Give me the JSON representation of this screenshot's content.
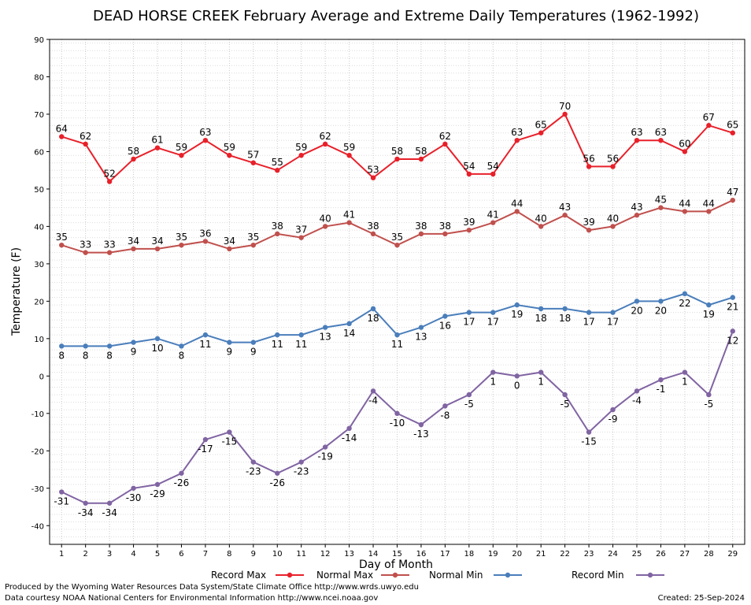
{
  "chart_data": {
    "type": "line",
    "title": "DEAD HORSE CREEK February Average and Extreme Daily Temperatures (1962-1992)",
    "xlabel": "Day of Month",
    "ylabel": "Temperature (F)",
    "ylim": [
      -45,
      90
    ],
    "yticks": [
      -40,
      -30,
      -20,
      -10,
      0,
      10,
      20,
      30,
      40,
      50,
      60,
      70,
      80,
      90
    ],
    "x": [
      1,
      2,
      3,
      4,
      5,
      6,
      7,
      8,
      9,
      10,
      11,
      12,
      13,
      14,
      15,
      16,
      17,
      18,
      19,
      20,
      21,
      22,
      23,
      24,
      25,
      26,
      27,
      28,
      29
    ],
    "grid": true,
    "legend_position": "bottom",
    "series": [
      {
        "name": "Record Max",
        "color": "#e8202a",
        "label_pos": "above",
        "values": [
          64,
          62,
          52,
          58,
          61,
          59,
          63,
          59,
          57,
          55,
          59,
          62,
          59,
          53,
          58,
          58,
          62,
          54,
          54,
          63,
          65,
          70,
          56,
          56,
          63,
          63,
          60,
          67,
          65
        ]
      },
      {
        "name": "Normal Max",
        "color": "#c0504d",
        "label_pos": "above",
        "values": [
          35,
          33,
          33,
          34,
          34,
          35,
          36,
          34,
          35,
          38,
          37,
          40,
          41,
          38,
          35,
          38,
          38,
          39,
          41,
          44,
          40,
          43,
          39,
          40,
          43,
          45,
          44,
          44,
          47
        ]
      },
      {
        "name": "Normal Min",
        "color": "#4a7ebb",
        "label_pos": "below",
        "values": [
          8,
          8,
          8,
          9,
          10,
          8,
          11,
          9,
          9,
          11,
          11,
          13,
          14,
          18,
          11,
          13,
          16,
          17,
          17,
          19,
          18,
          18,
          17,
          17,
          20,
          20,
          22,
          19,
          21
        ]
      },
      {
        "name": "Record Min",
        "color": "#8064a2",
        "label_pos": "below",
        "values": [
          -31,
          -34,
          -34,
          -30,
          -29,
          -26,
          -17,
          -15,
          -23,
          -26,
          -23,
          -19,
          -14,
          -4,
          -10,
          -13,
          -8,
          -5,
          1,
          0,
          1,
          -5,
          -15,
          -9,
          -4,
          -1,
          1,
          -5,
          12
        ]
      }
    ]
  },
  "footer": {
    "credit_line1": "Produced by the Wyoming Water Resources Data System/State Climate Office http://www.wrds.uwyo.edu",
    "credit_line2": "Data courtesy NOAA National Centers for Environmental Information http://www.ncei.noaa.gov",
    "created": "Created:  25-Sep-2024"
  }
}
